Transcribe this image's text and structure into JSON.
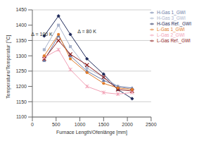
{
  "chart_data": {
    "type": "line",
    "x_label": "Furnace Length/Ofenlänge [mm]",
    "y_label": "Temperature/Temperatur [°C]",
    "x": [
      250,
      550,
      800,
      1150,
      1500,
      1800,
      2100
    ],
    "series": [
      {
        "name": "H-Gas Ref._GWI",
        "color": "#1f2a5a",
        "marker": "diamond",
        "values": [
          1365,
          1430,
          1370,
          1290,
          1240,
          1190,
          1160
        ]
      },
      {
        "name": "H-Gas 3_GWI",
        "color": "#aab4cc",
        "marker": "square",
        "values": [
          1320,
          1400,
          1330,
          1260,
          1230,
          1200,
          1190
        ]
      },
      {
        "name": "H-Gas 1_GWI",
        "color": "#6a7ba6",
        "marker": "triangle",
        "values": [
          1285,
          1365,
          1300,
          1250,
          1220,
          1200,
          1195
        ]
      },
      {
        "name": "L-Gas Ref._GWI",
        "color": "#8b1a1a",
        "marker": "cross",
        "values": [
          1290,
          1350,
          1305,
          1270,
          1230,
          1190,
          1185
        ]
      },
      {
        "name": "L-Gas 2_GWI",
        "color": "#f2a0b5",
        "marker": "star",
        "values": [
          1295,
          1320,
          1255,
          1200,
          1180,
          1175,
          1180
        ]
      },
      {
        "name": "L-Gas 1_GWI",
        "color": "#e07b2a",
        "marker": "circle",
        "values": [
          1300,
          1370,
          1290,
          1245,
          1210,
          1195,
          1190
        ]
      }
    ],
    "xlim": [
      0,
      2500
    ],
    "xticks": [
      0,
      500,
      1000,
      1500,
      2000,
      2500
    ],
    "ylim": [
      1100,
      1450
    ],
    "yticks": [
      1100,
      1150,
      1200,
      1250,
      1300,
      1350,
      1400,
      1450
    ],
    "grid": true,
    "legend": "upper right",
    "annotations": [
      {
        "text": "Δ = 100 K",
        "x": 200,
        "y": 1370
      },
      {
        "text": "Δ = 80 K",
        "x": 1150,
        "y": 1380
      }
    ]
  }
}
